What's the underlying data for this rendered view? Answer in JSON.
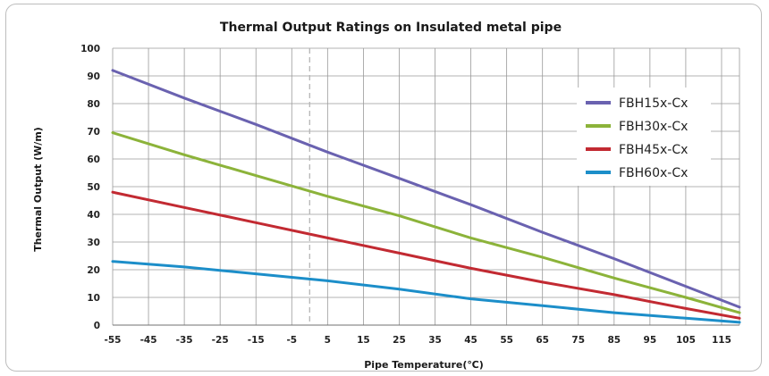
{
  "chart_data": {
    "type": "line",
    "title": "Thermal Output Ratings on Insulated metal pipe",
    "xlabel": "Pipe Temperature(℃)",
    "ylabel": "Thermal Output (W/m)",
    "xlim": [
      -55,
      120
    ],
    "ylim": [
      0,
      100
    ],
    "x_ticks": [
      -55,
      -45,
      -35,
      -25,
      -15,
      -5,
      5,
      15,
      25,
      35,
      45,
      55,
      65,
      75,
      85,
      95,
      105,
      115
    ],
    "y_ticks": [
      0,
      10,
      20,
      30,
      40,
      50,
      60,
      70,
      80,
      90,
      100
    ],
    "grid": true,
    "reference_line_x": 0,
    "legend_position": "right",
    "series": [
      {
        "name": "FBH15x-Cx",
        "color": "#6a62b0",
        "x": [
          -55,
          -35,
          -15,
          5,
          25,
          45,
          65,
          85,
          105,
          120
        ],
        "y": [
          92,
          82,
          72.5,
          62.5,
          53,
          43.5,
          33.5,
          24,
          14,
          6.5
        ]
      },
      {
        "name": "FBH30x-Cx",
        "color": "#8cb33a",
        "x": [
          -55,
          -35,
          -15,
          5,
          25,
          45,
          65,
          85,
          105,
          120
        ],
        "y": [
          69.5,
          61.5,
          54,
          46.5,
          39.5,
          31.5,
          24.5,
          17,
          10,
          4.5
        ]
      },
      {
        "name": "FBH45x-Cx",
        "color": "#c22a32",
        "x": [
          -55,
          -35,
          -15,
          5,
          25,
          45,
          65,
          85,
          105,
          120
        ],
        "y": [
          48,
          42.5,
          37,
          31.5,
          26,
          20.5,
          15.5,
          11,
          6,
          2.5
        ]
      },
      {
        "name": "FBH60x-Cx",
        "color": "#1c8ec9",
        "x": [
          -55,
          -35,
          -15,
          5,
          25,
          45,
          65,
          85,
          105,
          120
        ],
        "y": [
          23,
          21,
          18.5,
          16,
          13,
          9.5,
          7,
          4.5,
          2.5,
          1
        ]
      }
    ]
  }
}
